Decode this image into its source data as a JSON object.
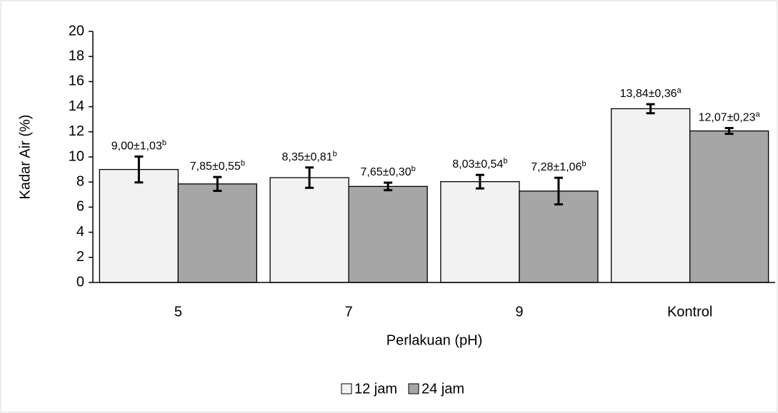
{
  "chart_data": {
    "type": "bar",
    "x_label": "Perlakuan (pH)",
    "y_label": "Kadar Air (%)",
    "categories": [
      "5",
      "7",
      "9",
      "Kontrol"
    ],
    "series": [
      {
        "name": "12 jam",
        "color": "#f2f2f2",
        "values": [
          9.0,
          8.35,
          8.03,
          13.84
        ],
        "errors": [
          1.03,
          0.81,
          0.54,
          0.36
        ],
        "value_labels": [
          "9,00±1,03",
          "8,35±0,81",
          "8,03±0,54",
          "13,84±0,36"
        ],
        "letters": [
          "b",
          "b",
          "b",
          "a"
        ]
      },
      {
        "name": "24 jam",
        "color": "#a6a6a6",
        "values": [
          7.85,
          7.65,
          7.28,
          12.07
        ],
        "errors": [
          0.55,
          0.3,
          1.06,
          0.23
        ],
        "value_labels": [
          "7,85±0,55",
          "7,65±0,30",
          "7,28±1,06",
          "12,07±0,23"
        ],
        "letters": [
          "b",
          "b",
          "b",
          "a"
        ]
      }
    ],
    "ylim": [
      0,
      20
    ],
    "yticks": [
      0,
      2,
      4,
      6,
      8,
      10,
      12,
      14,
      16,
      18,
      20
    ],
    "legend": "bottom"
  }
}
